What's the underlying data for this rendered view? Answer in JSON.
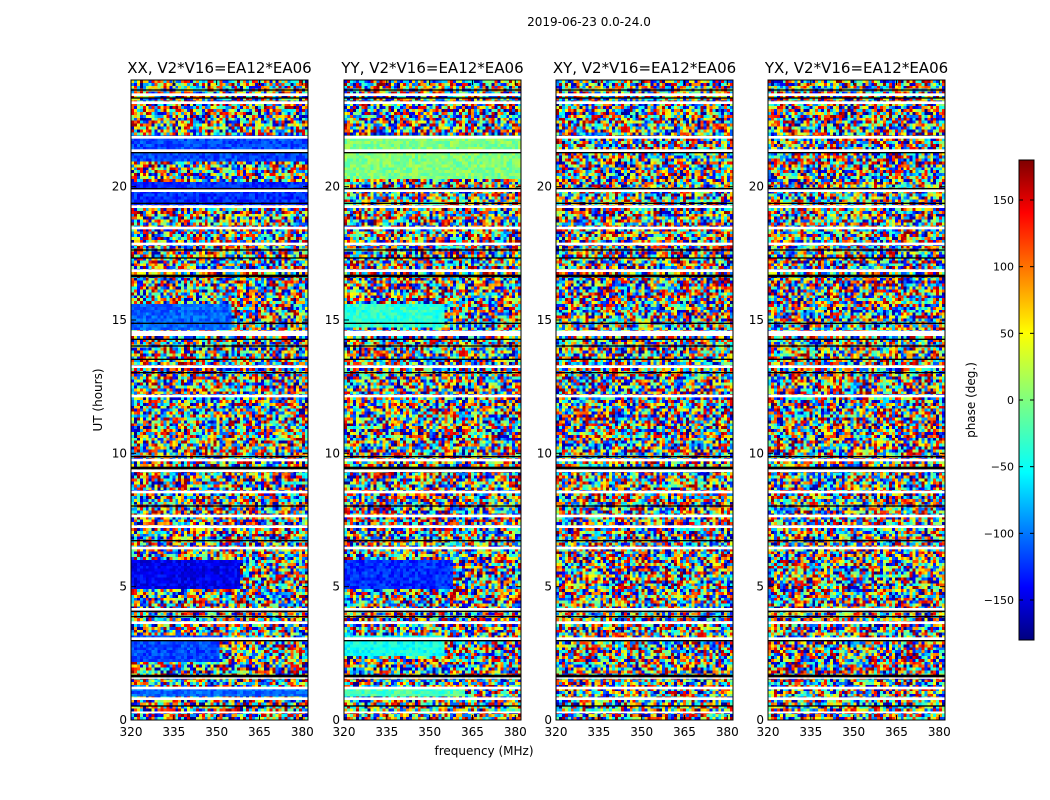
{
  "figure": {
    "suptitle": "2019-06-23 0.0-24.0"
  },
  "chart_data": {
    "type": "heatmap",
    "ylabel": "UT (hours)",
    "xlabel": "frequency (MHz)",
    "xlim": [
      320,
      382
    ],
    "ylim": [
      0,
      24
    ],
    "x_ticks": [
      320,
      335,
      350,
      365,
      380
    ],
    "y_ticks": [
      0,
      5,
      10,
      15,
      20
    ],
    "panels": [
      {
        "title": "XX, V2*V16=EA12*EA06",
        "product": "XX"
      },
      {
        "title": "YY, V2*V16=EA12*EA06",
        "product": "YY"
      },
      {
        "title": "XY, V2*V16=EA12*EA06",
        "product": "XY"
      },
      {
        "title": "YX, V2*V16=EA12*EA06",
        "product": "YX"
      }
    ],
    "colorbar": {
      "label": "phase (deg.)",
      "colormap": "jet",
      "range": [
        -180,
        180
      ],
      "ticks": [
        -150,
        -100,
        -50,
        0,
        50,
        100,
        150
      ]
    },
    "flagged_gaps_hours": [
      [
        0.25,
        0.32
      ],
      [
        0.75,
        0.85
      ],
      [
        1.15,
        1.25
      ],
      [
        1.55,
        1.6
      ],
      [
        3.0,
        3.1
      ],
      [
        3.6,
        3.7
      ],
      [
        4.1,
        4.2
      ],
      [
        6.4,
        6.5
      ],
      [
        7.2,
        7.3
      ],
      [
        7.6,
        7.7
      ],
      [
        8.5,
        8.6
      ],
      [
        9.3,
        9.4
      ],
      [
        9.7,
        9.8
      ],
      [
        12.1,
        12.2
      ],
      [
        13.2,
        13.3
      ],
      [
        14.4,
        14.6
      ],
      [
        16.8,
        16.9
      ],
      [
        17.8,
        17.9
      ],
      [
        18.4,
        18.5
      ],
      [
        19.2,
        19.3
      ],
      [
        19.8,
        19.9
      ],
      [
        21.3,
        21.4
      ],
      [
        21.8,
        21.9
      ],
      [
        23.1,
        23.2
      ],
      [
        23.4,
        23.5
      ]
    ],
    "flagged_black_lines_hours": [
      [
        0.5,
        0.55
      ],
      [
        1.6,
        1.7
      ],
      [
        2.95,
        3.0
      ],
      [
        3.85,
        3.9
      ],
      [
        4.05,
        4.1
      ],
      [
        6.7,
        6.75
      ],
      [
        8.0,
        8.05
      ],
      [
        9.4,
        9.5
      ],
      [
        9.85,
        9.9
      ],
      [
        13.0,
        13.05
      ],
      [
        13.5,
        13.55
      ],
      [
        14.0,
        14.05
      ],
      [
        14.25,
        14.3
      ],
      [
        14.85,
        14.9
      ],
      [
        16.6,
        16.7
      ],
      [
        17.3,
        17.35
      ],
      [
        17.6,
        17.65
      ],
      [
        19.35,
        19.4
      ],
      [
        19.9,
        19.95
      ],
      [
        21.25,
        21.3
      ],
      [
        23.3,
        23.35
      ],
      [
        23.6,
        23.65
      ]
    ],
    "coherent_regions": [
      {
        "panel": "XX",
        "y": [
          21.0,
          21.9
        ],
        "x": [
          320,
          382
        ],
        "phase": -110
      },
      {
        "panel": "XX",
        "y": [
          19.4,
          20.1
        ],
        "x": [
          320,
          382
        ],
        "phase": -120
      },
      {
        "panel": "XX",
        "y": [
          14.7,
          15.6
        ],
        "x": [
          320,
          355
        ],
        "phase": -100
      },
      {
        "panel": "XX",
        "y": [
          5.0,
          6.0
        ],
        "x": [
          320,
          358
        ],
        "phase": -140
      },
      {
        "panel": "XX",
        "y": [
          2.2,
          3.1
        ],
        "x": [
          320,
          350
        ],
        "phase": -110
      },
      {
        "panel": "XX",
        "y": [
          0.9,
          1.1
        ],
        "x": [
          320,
          382
        ],
        "phase": -100
      },
      {
        "panel": "YY",
        "y": [
          20.3,
          21.9
        ],
        "x": [
          320,
          382
        ],
        "phase": 0
      },
      {
        "panel": "YY",
        "y": [
          14.8,
          15.6
        ],
        "x": [
          320,
          355
        ],
        "phase": -30
      },
      {
        "panel": "YY",
        "y": [
          5.0,
          6.0
        ],
        "x": [
          320,
          358
        ],
        "phase": -120
      },
      {
        "panel": "YY",
        "y": [
          2.4,
          3.1
        ],
        "x": [
          320,
          355
        ],
        "phase": -40
      },
      {
        "panel": "YY",
        "y": [
          0.9,
          1.1
        ],
        "x": [
          320,
          362
        ],
        "phase": -20
      }
    ]
  }
}
